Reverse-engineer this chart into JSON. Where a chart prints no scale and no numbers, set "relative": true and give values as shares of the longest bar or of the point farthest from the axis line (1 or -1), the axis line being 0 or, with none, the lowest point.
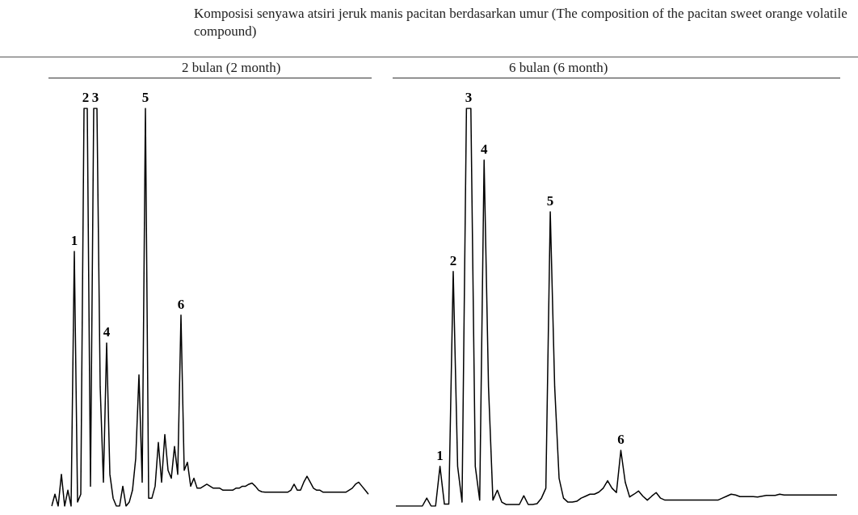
{
  "chart_data": [
    {
      "type": "line",
      "title": "2 bulan (2 month)",
      "relative": true,
      "annotations": [
        "Komposisi senyawa atsiri jeruk manis pacitan berdasarkan umur (The composition of the pacitan sweet orange volatile compound)",
        {
          "text": "1",
          "y": 0.64
        },
        {
          "text": "2",
          "y": 1
        },
        {
          "text": "3",
          "y": 1
        },
        {
          "text": "4",
          "y": 0.41
        },
        {
          "text": "5",
          "y": 1
        },
        {
          "text": "6",
          "y": 0.48
        }
      ],
      "categories": [
        null,
        null,
        null,
        null,
        null,
        null,
        null,
        null,
        null,
        null,
        null,
        null,
        null,
        null,
        null,
        null,
        null,
        null,
        null,
        null,
        null,
        null,
        null,
        null,
        null,
        null,
        null,
        null,
        null,
        null,
        null,
        null,
        null,
        null,
        null,
        null,
        null,
        null,
        null,
        null,
        null,
        null,
        null,
        null,
        null,
        null,
        null,
        null,
        null,
        null,
        null,
        null,
        null,
        null,
        null,
        null,
        null,
        null,
        null,
        null,
        null,
        null,
        null,
        null,
        null,
        null,
        null,
        null,
        null,
        null,
        null,
        null,
        null,
        null,
        null,
        null,
        null,
        null,
        null,
        null,
        null,
        null,
        null,
        null,
        null,
        null,
        null,
        null,
        null,
        null,
        null,
        null,
        null,
        null,
        null,
        null,
        null,
        null,
        null
      ],
      "series": [
        {
          "color": "#000000",
          "values": [
            0,
            0.03,
            0,
            0.08,
            0,
            0.04,
            0,
            0.64,
            0.01,
            0.03,
            1,
            1,
            0.05,
            1,
            1,
            0.3,
            0.06,
            0.41,
            0.08,
            0.02,
            0,
            0,
            0.05,
            0,
            0.01,
            0.04,
            0.12,
            0.33,
            0.06,
            1,
            0.02,
            0.02,
            0.05,
            0.16,
            0.06,
            0.18,
            0.09,
            0.07,
            0.15,
            0.08,
            0.48,
            0.09,
            0.11,
            0.05,
            0.07,
            0.045,
            0.045,
            0.05,
            0.055,
            0.05,
            0.045,
            0.045,
            0.045,
            0.04,
            0.04,
            0.04,
            0.04,
            0.045,
            0.045,
            0.05,
            0.05,
            0.055,
            0.058,
            0.05,
            0.04,
            0.036,
            0.035,
            0.035,
            0.035,
            0.035,
            0.035,
            0.035,
            0.035,
            0.035,
            0.04,
            0.055,
            0.04,
            0.04,
            0.06,
            0.075,
            0.06,
            0.045,
            0.04,
            0.04,
            0.035,
            0.035,
            0.035,
            0.035,
            0.035,
            0.035,
            0.035,
            0.035,
            0.04,
            0.045,
            0.055,
            0.06,
            0.05,
            0.04,
            0.03
          ]
        }
      ]
    },
    {
      "type": "line",
      "title": "6 bulan (6 month)",
      "relative": true,
      "annotations": [
        {
          "text": "1",
          "y": 0.1
        },
        {
          "text": "2",
          "y": 0.59
        },
        {
          "text": "3",
          "y": 1
        },
        {
          "text": "4",
          "y": 0.87
        },
        {
          "text": "5",
          "y": 0.74
        },
        {
          "text": "6",
          "y": 0.14
        }
      ],
      "categories": [
        null,
        null,
        null,
        null,
        null,
        null,
        null,
        null,
        null,
        null,
        null,
        null,
        null,
        null,
        null,
        null,
        null,
        null,
        null,
        null,
        null,
        null,
        null,
        null,
        null,
        null,
        null,
        null,
        null,
        null,
        null,
        null,
        null,
        null,
        null,
        null,
        null,
        null,
        null,
        null,
        null,
        null,
        null,
        null,
        null,
        null,
        null,
        null,
        null,
        null,
        null,
        null,
        null,
        null,
        null,
        null,
        null,
        null,
        null,
        null,
        null,
        null,
        null,
        null,
        null,
        null,
        null,
        null,
        null,
        null,
        null,
        null,
        null,
        null,
        null,
        null,
        null,
        null,
        null,
        null,
        null,
        null,
        null,
        null,
        null,
        null,
        null,
        null,
        null,
        null,
        null,
        null,
        null,
        null,
        null,
        null,
        null,
        null,
        null,
        null,
        null
      ],
      "series": [
        {
          "color": "#000000",
          "values": [
            0,
            0,
            0,
            0,
            0,
            0,
            0,
            0.02,
            0,
            0,
            0.1,
            0.005,
            0.005,
            0.59,
            0.1,
            0.01,
            1,
            1,
            0.1,
            0.015,
            0.87,
            0.3,
            0.015,
            0.04,
            0.01,
            0.004,
            0.004,
            0.004,
            0.004,
            0.026,
            0.004,
            0.004,
            0.006,
            0.02,
            0.045,
            0.74,
            0.3,
            0.07,
            0.02,
            0.01,
            0.01,
            0.012,
            0.02,
            0.025,
            0.03,
            0.03,
            0.035,
            0.045,
            0.064,
            0.045,
            0.034,
            0.14,
            0.06,
            0.023,
            0.03,
            0.038,
            0.025,
            0.015,
            0.025,
            0.034,
            0.02,
            0.015,
            0.015,
            0.015,
            0.015,
            0.015,
            0.015,
            0.015,
            0.015,
            0.015,
            0.015,
            0.015,
            0.015,
            0.015,
            0.02,
            0.025,
            0.03,
            0.028,
            0.024,
            0.024,
            0.024,
            0.024,
            0.023,
            0.025,
            0.027,
            0.027,
            0.027,
            0.03,
            0.028,
            0.028,
            0.028,
            0.028,
            0.028,
            0.028,
            0.028,
            0.028,
            0.028,
            0.028,
            0.028,
            0.028,
            0.028
          ]
        }
      ]
    }
  ]
}
